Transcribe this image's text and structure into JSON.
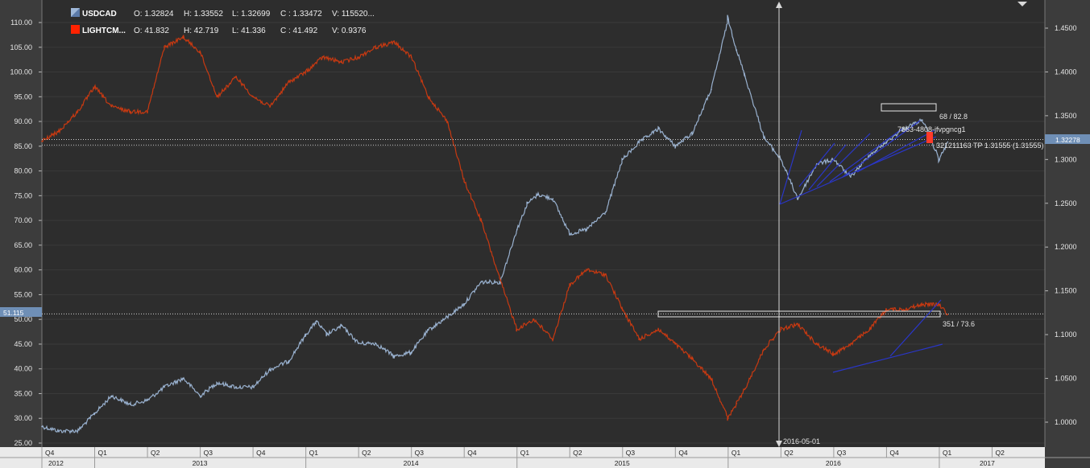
{
  "chart_data": {
    "type": "line",
    "legend": [
      {
        "name": "USDCAD",
        "swatch": "#9fb8d8",
        "o_label": "O: 1.32824",
        "h_label": "H: 1.33552",
        "l_label": "L: 1.32699",
        "c_label": "C : 1.33472",
        "v_label": "V: 115520..."
      },
      {
        "name": "LIGHTCM...",
        "swatch": "#ff2200",
        "o_label": "O: 41.832",
        "h_label": "H: 42.719",
        "l_label": "L: 41.336",
        "c_label": "C : 41.492",
        "v_label": "V: 0.9376"
      }
    ],
    "left_axis": {
      "min": 25,
      "max": 110,
      "ticks": [
        "110.00",
        "105.00",
        "100.00",
        "95.00",
        "90.00",
        "85.00",
        "80.00",
        "75.00",
        "70.00",
        "65.00",
        "60.00",
        "55.00",
        "50.00",
        "45.00",
        "40.00",
        "35.00",
        "30.00",
        "25.00"
      ],
      "current_label": "51.115",
      "current_value": 51.115
    },
    "right_axis": {
      "min": 0.975,
      "max": 1.475,
      "ticks": [
        "1.4500",
        "1.4000",
        "1.3500",
        "1.3000",
        "1.2500",
        "1.2000",
        "1.1500",
        "1.1000",
        "1.0500",
        "1.0000"
      ],
      "current_label": "1.32278",
      "current_value": 1.32278
    },
    "time_axis": {
      "quarters": [
        "Q4",
        "Q1",
        "Q2",
        "Q3",
        "Q4",
        "Q1",
        "Q2",
        "Q3",
        "Q4",
        "Q1",
        "Q2",
        "Q3",
        "Q4",
        "Q1",
        "Q2",
        "Q3",
        "Q4",
        "Q1",
        "Q2"
      ],
      "quarter_t": [
        2012.75,
        2013.0,
        2013.25,
        2013.5,
        2013.75,
        2014.0,
        2014.25,
        2014.5,
        2014.75,
        2015.0,
        2015.25,
        2015.5,
        2015.75,
        2016.0,
        2016.25,
        2016.5,
        2016.75,
        2017.0,
        2017.25
      ],
      "years": [
        "2012",
        "2013",
        "2014",
        "2015",
        "2016",
        "2017"
      ],
      "years_t": [
        2012.75,
        2013.0,
        2014.0,
        2015.0,
        2016.0,
        2017.0
      ],
      "t_min": 2012.75,
      "t_max": 2017.5
    },
    "series": [
      {
        "name": "USDCAD",
        "color": "#9fb8d8",
        "axis": "right",
        "t": [
          2012.75,
          2012.83,
          2012.92,
          2013.0,
          2013.08,
          2013.17,
          2013.25,
          2013.33,
          2013.42,
          2013.5,
          2013.58,
          2013.67,
          2013.75,
          2013.83,
          2013.92,
          2014.0,
          2014.05,
          2014.1,
          2014.17,
          2014.25,
          2014.33,
          2014.42,
          2014.5,
          2014.58,
          2014.67,
          2014.75,
          2014.83,
          2014.92,
          2015.0,
          2015.05,
          2015.1,
          2015.17,
          2015.25,
          2015.33,
          2015.42,
          2015.5,
          2015.58,
          2015.67,
          2015.75,
          2015.83,
          2015.92,
          2016.0,
          2016.04,
          2016.08,
          2016.17,
          2016.25,
          2016.33,
          2016.42,
          2016.5,
          2016.58,
          2016.67,
          2016.75,
          2016.83,
          2016.92,
          2017.0,
          2017.04
        ],
        "values": [
          0.995,
          0.99,
          0.99,
          1.01,
          1.03,
          1.02,
          1.025,
          1.04,
          1.05,
          1.03,
          1.045,
          1.04,
          1.04,
          1.06,
          1.07,
          1.1,
          1.115,
          1.1,
          1.11,
          1.09,
          1.09,
          1.075,
          1.08,
          1.105,
          1.12,
          1.135,
          1.16,
          1.16,
          1.22,
          1.25,
          1.26,
          1.255,
          1.215,
          1.22,
          1.24,
          1.3,
          1.32,
          1.335,
          1.315,
          1.33,
          1.38,
          1.46,
          1.425,
          1.395,
          1.325,
          1.3,
          1.255,
          1.295,
          1.3,
          1.28,
          1.305,
          1.32,
          1.335,
          1.345,
          1.3,
          1.32
        ]
      },
      {
        "name": "LIGHTCM...",
        "color": "#d03a10",
        "axis": "left",
        "t": [
          2012.75,
          2012.83,
          2012.92,
          2013.0,
          2013.08,
          2013.17,
          2013.25,
          2013.33,
          2013.42,
          2013.5,
          2013.58,
          2013.67,
          2013.75,
          2013.83,
          2013.92,
          2014.0,
          2014.08,
          2014.17,
          2014.25,
          2014.33,
          2014.42,
          2014.5,
          2014.58,
          2014.67,
          2014.75,
          2014.83,
          2014.92,
          2015.0,
          2015.08,
          2015.17,
          2015.25,
          2015.33,
          2015.42,
          2015.5,
          2015.58,
          2015.67,
          2015.75,
          2015.83,
          2015.92,
          2016.0,
          2016.04,
          2016.08,
          2016.17,
          2016.25,
          2016.33,
          2016.42,
          2016.5,
          2016.58,
          2016.67,
          2016.75,
          2016.83,
          2016.92,
          2017.0,
          2017.04
        ],
        "values": [
          86,
          88,
          92,
          97,
          93,
          92,
          92,
          105,
          107,
          104,
          95,
          99,
          95,
          93,
          98,
          100,
          103,
          102,
          103,
          105,
          106,
          103,
          95,
          90,
          78,
          70,
          58,
          48,
          50,
          46,
          57,
          60,
          59,
          52,
          46,
          48,
          45,
          42,
          38,
          30,
          33,
          36,
          44,
          48,
          49,
          45,
          43,
          45,
          48,
          52,
          52,
          53,
          53,
          51
        ]
      }
    ],
    "annotations": {
      "upper_box_label": "68 / 82.8",
      "upper_text_1": "7863-4808-jfvpgncg1",
      "upper_text_2": "321211163 TP 1.31555 (1.31555)",
      "lower_box_label": "351 / 73.6",
      "date_marker": "2016-05-01"
    }
  }
}
